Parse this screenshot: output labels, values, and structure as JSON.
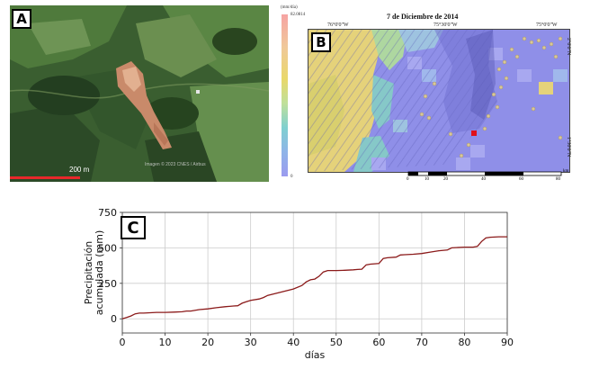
{
  "panel_a": {
    "label": "A",
    "scale_text": "200 m",
    "imagery_credit": "Imagen © 2023 CNES / Airbus",
    "colors": {
      "forest": "#2f5028",
      "pasture": "#5f8a4a",
      "landslide": "#c98a6a",
      "scale_bar": "#e8282b"
    }
  },
  "panel_b": {
    "label": "B",
    "title": "7 de Diciembre de 2014",
    "colorbar_unit": "(mm/día)",
    "colorbar_max": "82.0814",
    "colorbar_min": "0",
    "lon_labels": [
      "76°0'0\"W",
      "75°30'0\"W",
      "75°0'0\"W"
    ],
    "lat_labels": [
      "2°0'0\"N",
      "1°30'0\"N"
    ],
    "scalebar_ticks": [
      "0",
      "10",
      "20",
      "40",
      "60",
      "80"
    ],
    "scalebar_unit": "km",
    "colors": {
      "low": "#8f8fe8",
      "mid": "#7fd0d0",
      "high": "#e9d86a",
      "max": "#f6a3a3",
      "marker": "#e0101a",
      "points": "#d8c79a"
    }
  },
  "panel_c": {
    "label": "C",
    "chart_data": {
      "type": "line",
      "title": "",
      "xlabel": "días",
      "ylabel": "Precipitación acumulada (mm)",
      "xlim": [
        0,
        90
      ],
      "ylim": [
        -100,
        750
      ],
      "xticks": [
        0,
        10,
        20,
        30,
        40,
        50,
        60,
        70,
        80,
        90
      ],
      "yticks": [
        0,
        250,
        500,
        750
      ],
      "grid": true,
      "line_color": "#8b1a1a",
      "series": [
        {
          "x": [
            0,
            1,
            2,
            3,
            4,
            5,
            6,
            8,
            10,
            12,
            14,
            15,
            16,
            18,
            20,
            22,
            24,
            26,
            27,
            28,
            29,
            30,
            32,
            33,
            34,
            36,
            38,
            40,
            42,
            43,
            44,
            45,
            46,
            47,
            48,
            50,
            52,
            54,
            55,
            56,
            57,
            58,
            60,
            61,
            62,
            64,
            65,
            66,
            68,
            70,
            72,
            74,
            76,
            77,
            78,
            80,
            82,
            83,
            84,
            85,
            86,
            88,
            90
          ],
          "y": [
            0,
            10,
            20,
            35,
            40,
            40,
            42,
            45,
            45,
            47,
            50,
            55,
            55,
            65,
            70,
            78,
            85,
            90,
            92,
            110,
            120,
            130,
            140,
            150,
            165,
            180,
            195,
            210,
            235,
            260,
            275,
            280,
            300,
            330,
            340,
            340,
            342,
            345,
            348,
            350,
            380,
            385,
            390,
            425,
            430,
            435,
            450,
            452,
            455,
            460,
            470,
            480,
            485,
            500,
            502,
            505,
            505,
            510,
            545,
            570,
            575,
            578,
            578
          ]
        }
      ]
    }
  }
}
